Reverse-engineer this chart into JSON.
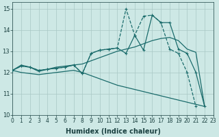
{
  "xlabel": "Humidex (Indice chaleur)",
  "xlim": [
    0,
    23
  ],
  "ylim": [
    10,
    15.3
  ],
  "yticks": [
    10,
    11,
    12,
    13,
    14,
    15
  ],
  "xticks": [
    0,
    1,
    2,
    3,
    4,
    5,
    6,
    7,
    8,
    9,
    10,
    11,
    12,
    13,
    14,
    15,
    16,
    17,
    18,
    19,
    20,
    21,
    22,
    23
  ],
  "bg_color": "#cde8e5",
  "grid_color": "#a8c8c5",
  "line_color": "#1a6b6b",
  "line1_x": [
    0,
    1,
    2,
    3,
    4,
    5,
    6,
    7,
    8,
    9,
    10,
    11,
    12,
    13,
    14,
    15,
    16,
    17,
    18,
    19,
    20,
    21,
    22
  ],
  "line1_y": [
    12.1,
    12.35,
    12.25,
    12.05,
    12.15,
    12.25,
    12.3,
    12.35,
    12.4,
    12.55,
    12.7,
    12.85,
    13.0,
    13.1,
    13.2,
    13.35,
    13.5,
    13.6,
    13.65,
    13.5,
    13.1,
    12.95,
    10.4
  ],
  "line2_x": [
    0,
    1,
    2,
    3,
    4,
    5,
    6,
    7,
    8,
    9,
    10,
    11,
    12,
    13,
    14,
    15,
    16,
    17,
    18,
    19,
    20,
    21,
    22
  ],
  "line2_y": [
    12.1,
    12.3,
    12.25,
    12.1,
    12.15,
    12.2,
    12.25,
    12.35,
    11.95,
    12.9,
    13.05,
    13.1,
    13.15,
    12.9,
    13.75,
    13.05,
    14.7,
    14.35,
    14.35,
    13.1,
    12.9,
    12.0,
    10.4
  ],
  "line3_x": [
    0,
    1,
    2,
    3,
    4,
    5,
    6,
    7,
    8,
    9,
    10,
    11,
    12,
    13,
    14,
    15,
    16,
    17,
    18,
    19,
    20,
    21,
    22
  ],
  "line3_y": [
    12.1,
    12.3,
    12.25,
    12.1,
    12.15,
    12.2,
    12.25,
    12.35,
    11.95,
    12.9,
    13.05,
    13.1,
    13.15,
    15.0,
    13.75,
    14.65,
    14.7,
    14.35,
    13.1,
    12.9,
    12.0,
    10.4,
    null
  ],
  "line4_x": [
    0,
    1,
    2,
    3,
    4,
    5,
    6,
    7,
    8,
    9,
    10,
    11,
    12,
    13,
    14,
    15,
    16,
    17,
    18,
    19,
    20,
    21,
    22
  ],
  "line4_y": [
    12.1,
    12.0,
    11.95,
    11.9,
    11.95,
    12.0,
    12.05,
    12.1,
    12.0,
    11.85,
    11.7,
    11.55,
    11.4,
    11.3,
    11.2,
    11.1,
    11.0,
    10.9,
    10.8,
    10.7,
    10.6,
    10.5,
    10.4
  ]
}
